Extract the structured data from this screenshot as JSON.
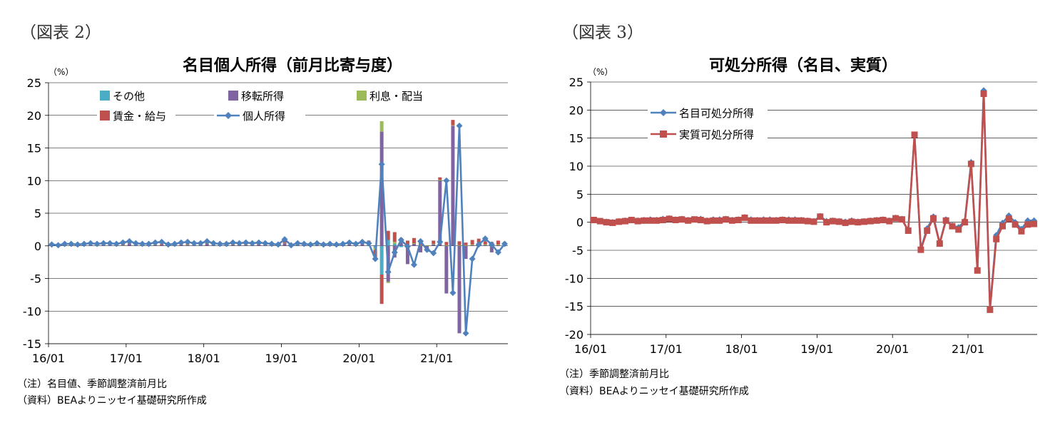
{
  "figures": [
    {
      "label": "（図表 2）",
      "unit": "（%）",
      "notes": [
        "（注）名目値、季節調整済前月比",
        "（資料）BEAよりニッセイ基礎研究所作成"
      ]
    },
    {
      "label": "（図表 3）",
      "unit": "（%）",
      "notes": [
        "（注）季節調整済前月比",
        "（資料）BEAよりニッセイ基礎研究所作成"
      ]
    }
  ],
  "colors": {
    "other": "#4bacc6",
    "transfer": "#8064a2",
    "interest": "#9bbb59",
    "wage": "#c0504d",
    "personal_income": "#4f81bd",
    "real_disposable": "#c0504d",
    "grid": "#000000"
  },
  "chart_data": [
    {
      "type": "bar",
      "stacked": true,
      "title": "名目個人所得（前月比寄与度）",
      "ylim": [
        -15,
        25
      ],
      "yticks": [
        -15,
        -10,
        -5,
        0,
        5,
        10,
        15,
        20,
        25
      ],
      "x_tick_labels": [
        "16/01",
        "17/01",
        "18/01",
        "19/01",
        "20/01",
        "21/01"
      ],
      "categories": [
        "16/01",
        "16/02",
        "16/03",
        "16/04",
        "16/05",
        "16/06",
        "16/07",
        "16/08",
        "16/09",
        "16/10",
        "16/11",
        "16/12",
        "17/01",
        "17/02",
        "17/03",
        "17/04",
        "17/05",
        "17/06",
        "17/07",
        "17/08",
        "17/09",
        "17/10",
        "17/11",
        "17/12",
        "18/01",
        "18/02",
        "18/03",
        "18/04",
        "18/05",
        "18/06",
        "18/07",
        "18/08",
        "18/09",
        "18/10",
        "18/11",
        "18/12",
        "19/01",
        "19/02",
        "19/03",
        "19/04",
        "19/05",
        "19/06",
        "19/07",
        "19/08",
        "19/09",
        "19/10",
        "19/11",
        "19/12",
        "20/01",
        "20/02",
        "20/03",
        "20/04",
        "20/05",
        "20/06",
        "20/07",
        "20/08",
        "20/09",
        "20/10",
        "20/11",
        "20/12",
        "21/01",
        "21/02",
        "21/03",
        "21/04",
        "21/05",
        "21/06",
        "21/07",
        "21/08",
        "21/09",
        "21/10",
        "21/11"
      ],
      "grid": true,
      "legend_position": "top",
      "series": [
        {
          "name": "その他",
          "kind": "bar",
          "values": [
            0,
            0,
            0,
            0,
            0,
            0,
            0,
            0,
            0,
            0,
            0,
            0,
            0,
            0,
            0,
            0,
            0,
            0,
            0,
            0,
            0,
            0,
            0,
            0,
            0,
            0,
            0,
            0,
            0,
            0,
            0,
            0,
            0,
            0,
            0,
            0,
            0,
            0,
            0,
            0,
            0,
            0,
            0,
            0,
            0,
            0,
            0,
            0,
            0,
            0.2,
            -0.3,
            -4.4,
            0.9,
            0.3,
            -0.2,
            0,
            0,
            0,
            0,
            0,
            0,
            0,
            0,
            0,
            0,
            0,
            0,
            0,
            0,
            0,
            0
          ]
        },
        {
          "name": "移転所得",
          "kind": "bar",
          "values": [
            0.05,
            0.05,
            0.1,
            0.05,
            0.1,
            0.1,
            0.1,
            0.05,
            0.1,
            0.1,
            0.05,
            0.05,
            0.3,
            0.1,
            0.1,
            0.1,
            0.1,
            0.1,
            0.1,
            0.1,
            0.1,
            0.1,
            0.1,
            0.1,
            0.3,
            0.1,
            0.1,
            0.1,
            0.1,
            0.1,
            0.1,
            0.1,
            0.1,
            0.1,
            0.1,
            0.1,
            0.4,
            0.1,
            0.1,
            0.1,
            0.1,
            0.1,
            0.1,
            0.1,
            0.1,
            0.1,
            0.1,
            0.1,
            0.4,
            0.1,
            0.1,
            17.5,
            -5.5,
            -1.8,
            0.5,
            -2.8,
            0.3,
            -1.0,
            -0.3,
            0.2,
            10.0,
            -7.3,
            18.4,
            -13.4,
            -2.0,
            0.1,
            0.4,
            0.1,
            -1.0,
            0.1,
            0.1
          ]
        },
        {
          "name": "利息・配当",
          "kind": "bar",
          "values": [
            0.05,
            0,
            0.05,
            0,
            0.05,
            0.05,
            0,
            0.05,
            0.05,
            0,
            0.05,
            0.05,
            0.05,
            0.05,
            0,
            0.05,
            0.05,
            0,
            0.05,
            0.05,
            0,
            0.05,
            0.05,
            0,
            0.05,
            0.05,
            0,
            0.05,
            0.05,
            0,
            0.05,
            0.05,
            0,
            0.05,
            0.05,
            0,
            0.05,
            0,
            0.05,
            0.05,
            0,
            0.05,
            0.05,
            0,
            0.05,
            0.05,
            0,
            0.05,
            0.05,
            0,
            -0.3,
            1.6,
            -0.2,
            0.3,
            0.1,
            0.1,
            0.1,
            0.1,
            0.1,
            0.1,
            0.1,
            0.1,
            0.1,
            0.1,
            0.1,
            0.1,
            0.1,
            0.1,
            0.1,
            0.1,
            0.1
          ]
        },
        {
          "name": "賃金・給与",
          "kind": "bar",
          "values": [
            0.1,
            0.1,
            0.1,
            0.1,
            0.1,
            0.1,
            0.2,
            0.2,
            0.2,
            0.2,
            0.2,
            0.2,
            0.2,
            0.2,
            0.2,
            0.2,
            0.2,
            0.2,
            0.2,
            0.2,
            0.2,
            0.2,
            0.2,
            0.2,
            0.3,
            0.2,
            0.2,
            0.2,
            0.2,
            0.2,
            0.2,
            0.2,
            0.2,
            0.2,
            0.2,
            0.2,
            0.3,
            0.2,
            0.2,
            0.2,
            0.2,
            0.2,
            0.2,
            0.2,
            0.2,
            0.2,
            0.2,
            0.2,
            0.4,
            0.5,
            -1.6,
            -4.5,
            1.4,
            1.5,
            0.6,
            0.7,
            0.8,
            0.7,
            -0.4,
            0.5,
            0.4,
            0.5,
            0.8,
            0.6,
            0.4,
            0.7,
            0.6,
            0.5,
            0.5,
            0.6,
            0.4
          ]
        },
        {
          "name": "個人所得",
          "kind": "line",
          "values": [
            0.2,
            0.1,
            0.3,
            0.3,
            0.2,
            0.3,
            0.4,
            0.3,
            0.4,
            0.4,
            0.3,
            0.5,
            0.7,
            0.4,
            0.3,
            0.3,
            0.5,
            0.6,
            0.2,
            0.3,
            0.5,
            0.6,
            0.4,
            0.4,
            0.7,
            0.4,
            0.3,
            0.3,
            0.5,
            0.4,
            0.5,
            0.4,
            0.5,
            0.4,
            0.3,
            0.2,
            1.0,
            0.1,
            0.4,
            0.3,
            0.2,
            0.4,
            0.2,
            0.3,
            0.2,
            0.3,
            0.5,
            0.3,
            0.6,
            0.4,
            -2.0,
            12.5,
            -4.0,
            -1.0,
            0.9,
            -0.1,
            -2.9,
            0.7,
            -0.6,
            -1.1,
            0.6,
            10.0,
            -7.2,
            18.4,
            -13.4,
            -2.0,
            0.2,
            1.1,
            0.2,
            -1.0,
            0.3
          ]
        }
      ]
    },
    {
      "type": "line",
      "title": "可処分所得（名目、実質）",
      "ylim": [
        -20,
        25
      ],
      "yticks": [
        -20,
        -15,
        -10,
        -5,
        0,
        5,
        10,
        15,
        20,
        25
      ],
      "x_tick_labels": [
        "16/01",
        "17/01",
        "18/01",
        "19/01",
        "20/01",
        "21/01"
      ],
      "grid": true,
      "legend_position": "top-left",
      "series": [
        {
          "name": "名目可処分所得",
          "values": [
            0.4,
            0.2,
            0.1,
            0.0,
            0.2,
            0.3,
            0.4,
            0.3,
            0.4,
            0.5,
            0.4,
            0.6,
            0.7,
            0.5,
            0.6,
            0.4,
            0.5,
            0.6,
            0.3,
            0.5,
            0.5,
            0.6,
            0.4,
            0.5,
            0.9,
            0.5,
            0.4,
            0.5,
            0.5,
            0.4,
            0.5,
            0.5,
            0.5,
            0.4,
            0.3,
            0.2,
            1.1,
            0.2,
            0.3,
            0.2,
            0.1,
            0.3,
            0.1,
            0.2,
            0.3,
            0.4,
            0.5,
            0.3,
            0.8,
            0.6,
            -1.5,
            15.6,
            -4.8,
            -1.1,
            1.0,
            -3.7,
            0.5,
            -0.6,
            -0.9,
            0.3,
            10.7,
            -8.3,
            23.5,
            -15.3,
            -2.3,
            -0.1,
            1.2,
            0.0,
            -1.2,
            0.3,
            0.3
          ]
        },
        {
          "name": "実質可処分所得",
          "values": [
            0.4,
            0.2,
            0.0,
            -0.1,
            0.1,
            0.2,
            0.4,
            0.2,
            0.3,
            0.3,
            0.3,
            0.4,
            0.6,
            0.4,
            0.5,
            0.3,
            0.5,
            0.4,
            0.2,
            0.3,
            0.3,
            0.5,
            0.3,
            0.4,
            0.8,
            0.3,
            0.3,
            0.3,
            0.3,
            0.3,
            0.4,
            0.3,
            0.3,
            0.3,
            0.2,
            0.1,
            1.0,
            0.0,
            0.2,
            0.1,
            -0.1,
            0.1,
            0.0,
            0.1,
            0.2,
            0.3,
            0.4,
            0.2,
            0.7,
            0.5,
            -1.5,
            15.6,
            -4.9,
            -1.5,
            0.7,
            -3.8,
            0.3,
            -0.7,
            -1.3,
            0.0,
            10.4,
            -8.6,
            22.9,
            -15.6,
            -3.0,
            -0.7,
            0.6,
            -0.4,
            -1.6,
            -0.4,
            -0.3
          ]
        }
      ]
    }
  ]
}
